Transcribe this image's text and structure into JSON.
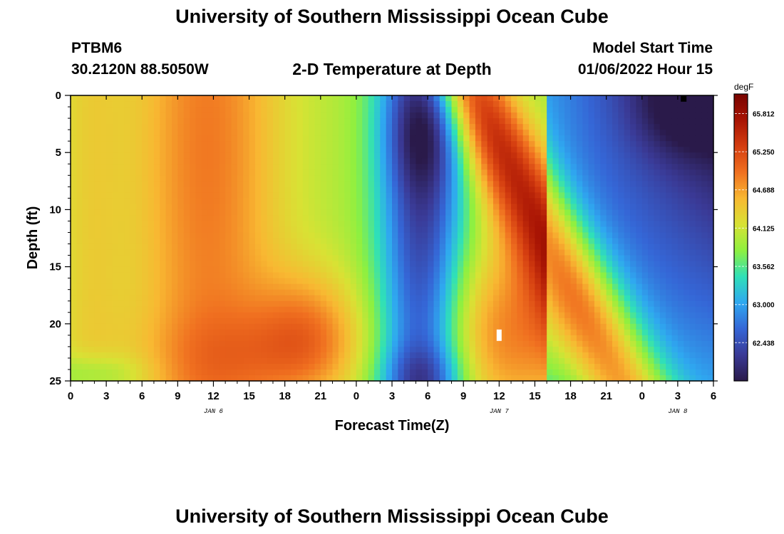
{
  "header": {
    "title": "University of Southern Mississippi Ocean Cube",
    "station": "PTBM6",
    "location": "30.2120N  88.5050W",
    "plot_title": "2-D Temperature at Depth",
    "model_start_label": "Model Start Time",
    "model_start_value": "01/06/2022 Hour 15"
  },
  "footer": {
    "title": "University of Southern Mississippi Ocean Cube"
  },
  "chart_data": {
    "type": "heatmap",
    "title": "2-D Temperature at Depth",
    "xlabel": "Forecast Time(Z)",
    "ylabel": "Depth (ft)",
    "x_hours_range": [
      0,
      54
    ],
    "x_tick_hours": [
      0,
      3,
      6,
      9,
      12,
      15,
      18,
      21,
      24,
      27,
      30,
      33,
      36,
      39,
      42,
      45,
      48,
      51,
      54
    ],
    "x_tick_labels": [
      "0",
      "3",
      "6",
      "9",
      "12",
      "15",
      "18",
      "21",
      "0",
      "3",
      "6",
      "9",
      "12",
      "15",
      "18",
      "21",
      "0",
      "3",
      "6"
    ],
    "date_labels": [
      {
        "text": "JAN 6",
        "hour": 12
      },
      {
        "text": "JAN 7",
        "hour": 36
      },
      {
        "text": "JAN 8",
        "hour": 51
      }
    ],
    "y_range": [
      0,
      25
    ],
    "y_ticks": [
      0,
      5,
      10,
      15,
      20,
      25
    ],
    "y_reversed": true,
    "colorbar": {
      "unit": "degF",
      "ticks": [
        "65.812",
        "65.250",
        "64.688",
        "64.125",
        "63.562",
        "63.000",
        "62.438"
      ],
      "min": 61.875,
      "max": 66.1,
      "colors": [
        "#2a1a4a",
        "#3a3a96",
        "#3566d6",
        "#2fa8f0",
        "#2fe0b8",
        "#8ef040",
        "#d8e234",
        "#f8b832",
        "#f07020",
        "#d43d10",
        "#a81404",
        "#780400"
      ]
    },
    "markers": [
      {
        "hour": 51.5,
        "depth": 0.3,
        "color": "#000000"
      },
      {
        "hour": 36,
        "depth": 21,
        "color": "#ffffff"
      }
    ]
  }
}
